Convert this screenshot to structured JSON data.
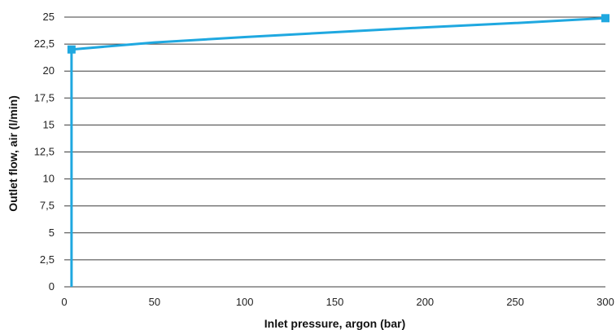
{
  "chart_data": {
    "type": "line",
    "title": "",
    "xlabel": "Inlet pressure, argon (bar)",
    "ylabel": "Outlet flow, air (l/min)",
    "xlim": [
      0,
      300
    ],
    "ylim": [
      0,
      25
    ],
    "x_ticks": [
      0,
      50,
      100,
      150,
      200,
      250,
      300
    ],
    "y_ticks": [
      0,
      2.5,
      5,
      7.5,
      10,
      12.5,
      15,
      17.5,
      20,
      22.5,
      25
    ],
    "x_tick_labels": [
      "0",
      "50",
      "100",
      "150",
      "200",
      "250",
      "300"
    ],
    "y_tick_labels": [
      "0",
      "2,5",
      "5",
      "7,5",
      "10",
      "12,5",
      "15",
      "17,5",
      "20",
      "22,5",
      "25"
    ],
    "grid": "horizontal",
    "legend": "none",
    "series": [
      {
        "color": "#1fa8e0",
        "x": [
          4,
          4,
          50,
          100,
          150,
          200,
          250,
          300
        ],
        "y": [
          0,
          22,
          22.65,
          23.15,
          23.6,
          24.05,
          24.45,
          24.9
        ],
        "marker_points": [
          [
            4,
            22
          ],
          [
            300,
            24.9
          ]
        ]
      }
    ]
  }
}
